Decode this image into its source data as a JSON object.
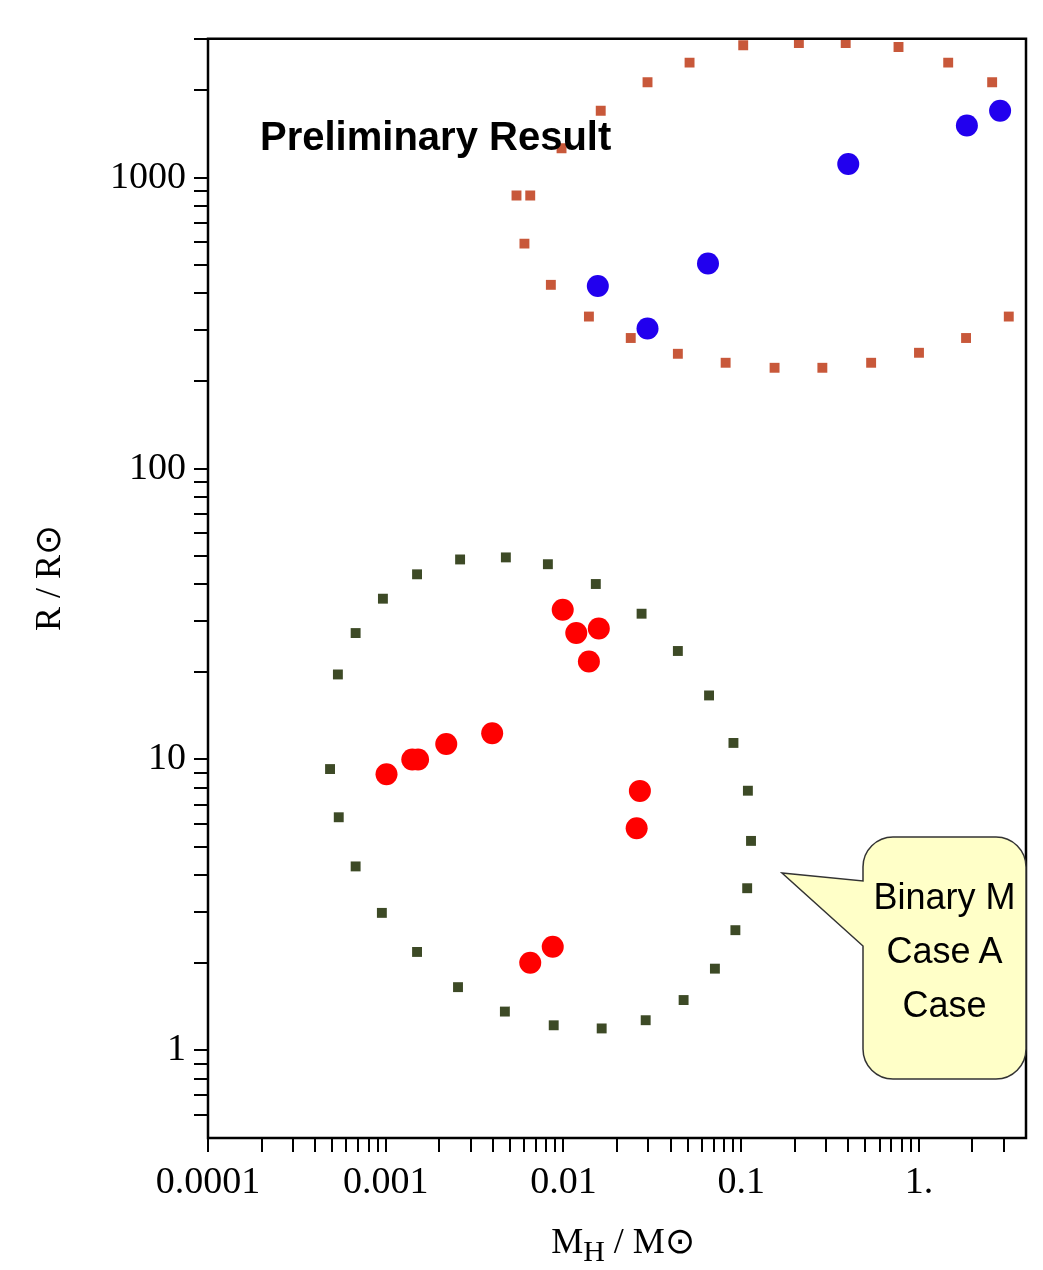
{
  "chart_data": {
    "type": "scatter",
    "xlabel": "M$_{H}$ / M⊙",
    "ylabel": "R / R⊙",
    "log": "xy",
    "grid": false,
    "legend": false,
    "xlim": [
      0.0001,
      4
    ],
    "ylim": [
      0.5,
      3000
    ],
    "xticks": [
      0.0001,
      {
        "value": 0.0002,
        "label": null
      },
      {
        "value": 0.0003,
        "label": null
      },
      {
        "value": 0.0004,
        "label": null
      },
      {
        "value": 0.0005,
        "label": null
      },
      {
        "value": 0.0006,
        "label": null
      },
      {
        "value": 0.0007,
        "label": null
      },
      {
        "value": 0.0008,
        "label": null
      },
      {
        "value": 0.0009,
        "label": null
      },
      0.001,
      {
        "value": 0.002,
        "label": null
      },
      {
        "value": 0.003,
        "label": null
      },
      {
        "value": 0.004,
        "label": null
      },
      {
        "value": 0.005,
        "label": null
      },
      {
        "value": 0.006,
        "label": null
      },
      {
        "value": 0.007,
        "label": null
      },
      {
        "value": 0.008,
        "label": null
      },
      {
        "value": 0.009,
        "label": null
      },
      0.01,
      {
        "value": 0.02,
        "label": null
      },
      {
        "value": 0.03,
        "label": null
      },
      {
        "value": 0.04,
        "label": null
      },
      {
        "value": 0.05,
        "label": null
      },
      {
        "value": 0.06,
        "label": null
      },
      {
        "value": 0.07,
        "label": null
      },
      {
        "value": 0.08,
        "label": null
      },
      {
        "value": 0.09,
        "label": null
      },
      0.1,
      {
        "value": 0.2,
        "label": null
      },
      {
        "value": 0.3,
        "label": null
      },
      {
        "value": 0.4,
        "label": null
      },
      {
        "value": 0.5,
        "label": null
      },
      {
        "value": 0.6,
        "label": null
      },
      {
        "value": 0.7,
        "label": null
      },
      {
        "value": 0.8,
        "label": null
      },
      {
        "value": 0.9,
        "label": null
      },
      {
        "value": 1,
        "label": "1."
      },
      {
        "value": 2,
        "label": null
      },
      {
        "value": 3,
        "label": null
      }
    ],
    "yticks": [
      {
        "value": 0.6,
        "label": null
      },
      {
        "value": 0.7,
        "label": null
      },
      {
        "value": 0.8,
        "label": null
      },
      {
        "value": 0.9,
        "label": null
      },
      1,
      {
        "value": 2,
        "label": null
      },
      {
        "value": 3,
        "label": null
      },
      {
        "value": 4,
        "label": null
      },
      {
        "value": 5,
        "label": null
      },
      {
        "value": 6,
        "label": null
      },
      {
        "value": 7,
        "label": null
      },
      {
        "value": 8,
        "label": null
      },
      {
        "value": 9,
        "label": null
      },
      10,
      {
        "value": 20,
        "label": null
      },
      {
        "value": 30,
        "label": null
      },
      {
        "value": 40,
        "label": null
      },
      {
        "value": 50,
        "label": null
      },
      {
        "value": 60,
        "label": null
      },
      {
        "value": 70,
        "label": null
      },
      {
        "value": 80,
        "label": null
      },
      {
        "value": 90,
        "label": null
      },
      100,
      {
        "value": 200,
        "label": null
      },
      {
        "value": 300,
        "label": null
      },
      {
        "value": 400,
        "label": null
      },
      {
        "value": 500,
        "label": null
      },
      {
        "value": 600,
        "label": null
      },
      {
        "value": 700,
        "label": null
      },
      {
        "value": 800,
        "label": null
      },
      {
        "value": 900,
        "label": null
      },
      1000,
      {
        "value": 2000,
        "label": null
      },
      {
        "value": 3000,
        "label": null
      }
    ],
    "annotations": [
      "Preliminary Result",
      "Binary M\nCase A\nCase"
    ],
    "series": [
      {
        "color": "#3d4a26",
        "marker": "square",
        "x": [
          0.000486,
          0.000544,
          0.000677,
          0.000951,
          0.0015,
          0.00255,
          0.00468,
          0.00881,
          0.0164,
          0.029,
          0.0474,
          0.0711,
          0.0927,
          0.108,
          0.1135,
          0.109,
          0.0904,
          0.0659,
          0.044,
          0.0275,
          0.0152,
          0.00817,
          0.00474,
          0.00262,
          0.0015,
          0.000964,
          0.000677,
          0.000538
        ],
        "values": [
          9.27,
          6.33,
          4.29,
          2.97,
          2.18,
          1.65,
          1.36,
          1.22,
          1.19,
          1.27,
          1.49,
          1.91,
          2.59,
          3.61,
          5.25,
          7.81,
          11.4,
          16.6,
          23.6,
          31.7,
          40.1,
          46.9,
          49.5,
          48.7,
          43.3,
          35.7,
          27.2,
          19.6
        ]
      },
      {
        "color": "#c8583a",
        "marker": "square",
        "x": [
          0.00544,
          0.00603,
          0.00849,
          0.0139,
          0.0239,
          0.044,
          0.0817,
          0.154,
          0.286,
          0.538,
          1.0,
          1.84,
          3.2,
          2.58,
          1.46,
          0.767,
          0.387,
          0.211,
          0.1026,
          0.0512,
          0.0297,
          0.0162,
          0.00975,
          0.0065
        ],
        "values": [
          868,
          593,
          428,
          333,
          281,
          248,
          231,
          222,
          222,
          231,
          250,
          281,
          333,
          2127,
          2485,
          2813,
          2900,
          2900,
          2850,
          2485,
          2127,
          1697,
          1262,
          868
        ]
      },
      {
        "color": "#ff0000",
        "marker": "circle",
        "x": [
          0.00101,
          0.00141,
          0.00152,
          0.00219,
          0.00397,
          0.0099,
          0.0118,
          0.0158,
          0.0139,
          0.0269,
          0.0258,
          0.0065,
          0.0087
        ],
        "values": [
          8.9,
          10,
          10,
          11.3,
          12.3,
          32.7,
          27.2,
          28.2,
          21.7,
          7.8,
          5.8,
          2.0,
          2.27
        ]
      },
      {
        "color": "#2200ee",
        "marker": "circle",
        "x": [
          0.0156,
          0.0297,
          0.065,
          0.4,
          1.86,
          2.86
        ],
        "values": [
          424,
          303,
          507,
          1114,
          1510,
          1697
        ]
      }
    ]
  }
}
